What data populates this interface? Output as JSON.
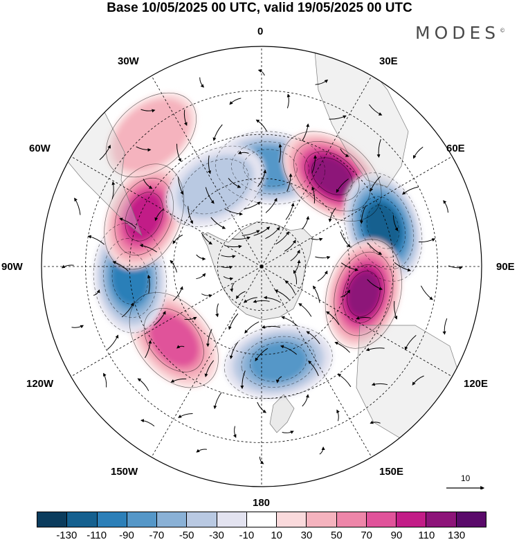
{
  "title": "Base 10/05/2025 00 UTC, valid 19/05/2025 00 UTC",
  "brand": "MODES",
  "brand_mark": "©",
  "longitude_labels": {
    "lon_0": "0",
    "lon_30e": "30E",
    "lon_60e": "60E",
    "lon_90e": "90E",
    "lon_120e": "120E",
    "lon_150e": "150E",
    "lon_180": "180",
    "lon_150w": "150W",
    "lon_120w": "120W",
    "lon_90w": "90W",
    "lon_60w": "60W",
    "lon_30w": "30W"
  },
  "reference_vector": "10",
  "colorbar": {
    "colors": [
      "#0b3c5d",
      "#15608f",
      "#2c7fb8",
      "#5597c8",
      "#8ab1d6",
      "#b9c9e2",
      "#e3e3f0",
      "#ffffff",
      "#fadadc",
      "#f5b3be",
      "#ee86a9",
      "#e0539a",
      "#c21d87",
      "#8d1479",
      "#5a0a6a"
    ],
    "ticks": [
      "-130",
      "-110",
      "-90",
      "-70",
      "-50",
      "-30",
      "-10",
      "10",
      "30",
      "50",
      "70",
      "90",
      "110",
      "130"
    ]
  },
  "anomaly_centers": [
    {
      "name": "neg-30e-south",
      "lon": 5,
      "colat": 45,
      "value": -90
    },
    {
      "name": "pos-40e",
      "lon": 38,
      "colat": 52,
      "value": 125
    },
    {
      "name": "neg-70e",
      "lon": 72,
      "colat": 58,
      "value": -130
    },
    {
      "name": "pos-105e",
      "lon": 105,
      "colat": 48,
      "value": 120
    },
    {
      "name": "neg-165e",
      "lon": 170,
      "colat": 44,
      "value": -80
    },
    {
      "name": "pos-130w",
      "lon": -130,
      "colat": 52,
      "value": 75
    },
    {
      "name": "neg-85w",
      "lon": -95,
      "colat": 60,
      "value": -95
    },
    {
      "name": "pos-65w",
      "lon": -67,
      "colat": 58,
      "value": 100
    },
    {
      "name": "neg-20w",
      "lon": -30,
      "colat": 42,
      "value": -50
    },
    {
      "name": "pos-35w",
      "lon": -40,
      "colat": 78,
      "value": 30
    }
  ]
}
